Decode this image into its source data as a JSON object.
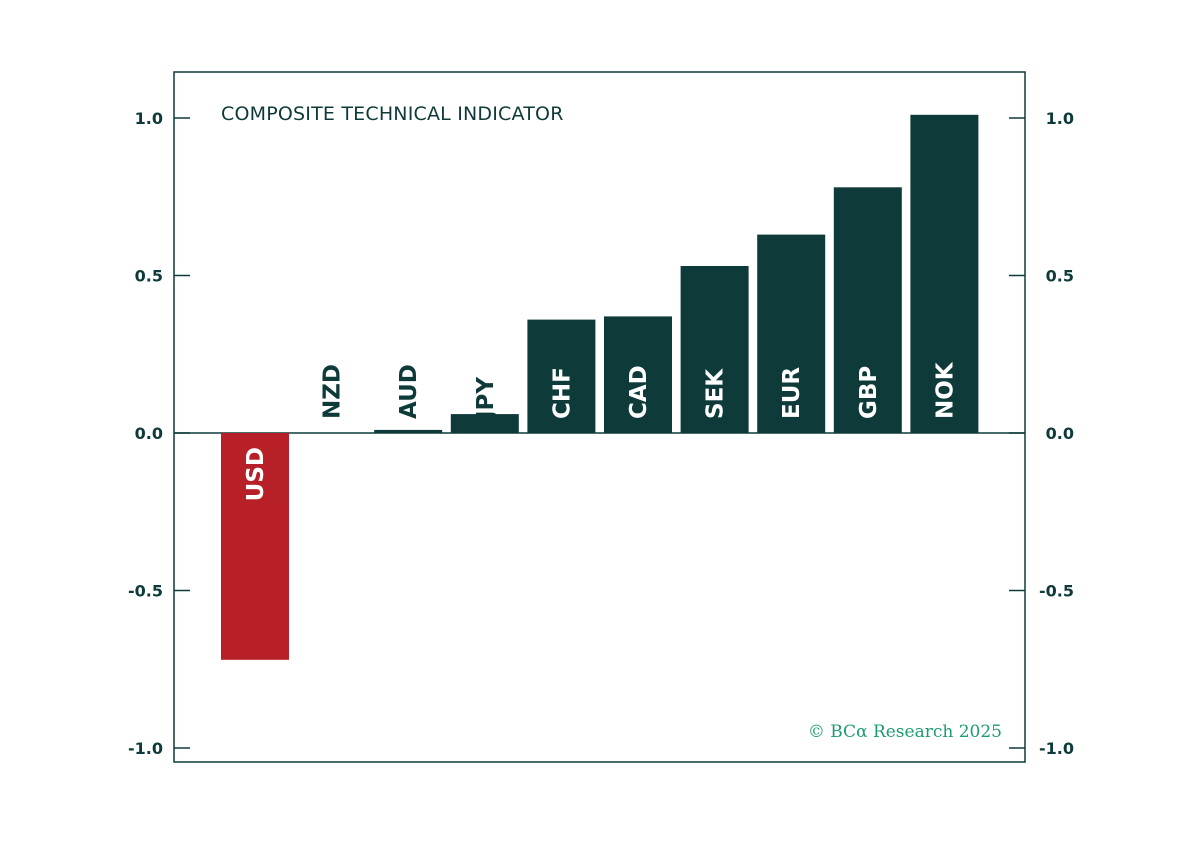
{
  "chart_data": {
    "type": "bar",
    "title": "COMPOSITE TECHNICAL INDICATOR",
    "categories": [
      "USD",
      "NZD",
      "AUD",
      "JPY",
      "CHF",
      "CAD",
      "SEK",
      "EUR",
      "GBP",
      "NOK"
    ],
    "values": [
      -0.72,
      0.0,
      0.01,
      0.06,
      0.36,
      0.37,
      0.53,
      0.63,
      0.78,
      1.01
    ],
    "ylim": [
      -1.0,
      1.0
    ],
    "yticks": [
      1.0,
      0.5,
      0.0,
      -0.5,
      -1.0
    ],
    "ytick_labels": [
      "1.0",
      "0.5",
      "0.0",
      "-0.5",
      "-1.0"
    ],
    "xlabel": "",
    "ylabel": "",
    "grid": false,
    "y_axis_both_sides": true,
    "colors": {
      "positive": "#0f3a3a",
      "negative": "#b72026",
      "frame": "#0f3a3a",
      "label_on_bar": "#ffffff",
      "label_above_bar": "#0f3a3a",
      "credit": "#1d9b72"
    },
    "credit": "© BCα Research 2025"
  }
}
